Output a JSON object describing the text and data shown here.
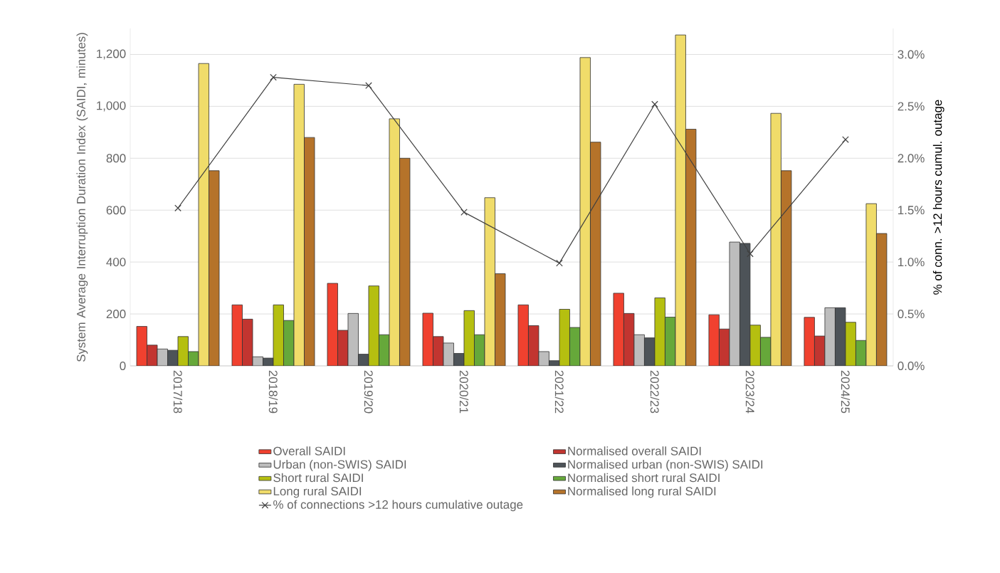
{
  "chart_data": {
    "type": "bar",
    "ylabel": "System Average Interruption Duration Index (SAIDI, minutes)",
    "y2label": "% of conn. >12 hours cumul. outage",
    "categories": [
      "2017/18",
      "2018/19",
      "2019/20",
      "2020/21",
      "2021/22",
      "2022/23",
      "2023/24",
      "2024/25"
    ],
    "series": [
      {
        "name": "Overall SAIDI",
        "color": "#f0412f",
        "values": [
          152,
          235,
          318,
          203,
          235,
          280,
          197,
          187
        ]
      },
      {
        "name": "Normalised overall SAIDI",
        "color": "#c23530",
        "values": [
          80,
          180,
          137,
          113,
          155,
          202,
          142,
          115
        ]
      },
      {
        "name": "Urban (non-SWIS) SAIDI",
        "color": "#bdbdbd",
        "values": [
          65,
          35,
          202,
          88,
          55,
          120,
          477,
          224
        ]
      },
      {
        "name": "Normalised urban (non-SWIS) SAIDI",
        "color": "#4d5358",
        "values": [
          60,
          30,
          45,
          48,
          20,
          108,
          472,
          224
        ]
      },
      {
        "name": "Short rural SAIDI",
        "color": "#b5bf10",
        "values": [
          113,
          235,
          308,
          213,
          218,
          262,
          157,
          168
        ]
      },
      {
        "name": "Normalised short rural SAIDI",
        "color": "#66a83a",
        "values": [
          55,
          175,
          120,
          120,
          148,
          188,
          110,
          98
        ]
      },
      {
        "name": "Long rural SAIDI",
        "color": "#f0dc6a",
        "values": [
          1165,
          1085,
          952,
          648,
          1188,
          1275,
          973,
          625
        ]
      },
      {
        "name": "Normalised long rural SAIDI",
        "color": "#b5732a",
        "values": [
          752,
          880,
          800,
          355,
          862,
          912,
          752,
          510
        ]
      },
      {
        "name": "% of connections >12 hours cumulative outage",
        "type": "line",
        "axis": "y2",
        "marker": "cross",
        "line_style": "solid",
        "color": "#404040",
        "values": [
          1.52,
          2.78,
          2.7,
          1.48,
          0.99,
          2.52,
          1.08,
          2.18
        ]
      }
    ],
    "ylim": [
      0,
      1300
    ],
    "yticks": [
      0,
      200,
      400,
      600,
      800,
      {
        "value": 1000,
        "label": "1,000"
      },
      {
        "value": 1200,
        "label": "1,200"
      }
    ],
    "y2lim": [
      0,
      3.25
    ],
    "y2ticks": [
      {
        "value": 0,
        "label": "0.0%"
      },
      {
        "value": 0.5,
        "label": "0.5%"
      },
      {
        "value": 1.0,
        "label": "1.0%"
      },
      {
        "value": 1.5,
        "label": "1.5%"
      },
      {
        "value": 2.0,
        "label": "2.0%"
      },
      {
        "value": 2.5,
        "label": "2.5%"
      },
      {
        "value": 3.0,
        "label": "3.0%"
      }
    ],
    "grid": "y",
    "legend": "bottom"
  }
}
